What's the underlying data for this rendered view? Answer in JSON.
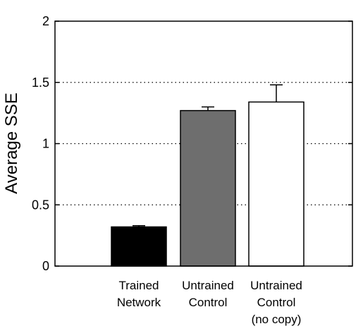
{
  "chart_data": {
    "type": "bar",
    "title": "",
    "xlabel": "",
    "ylabel": "Average SSE",
    "ylim": [
      0,
      2
    ],
    "yticks": [
      0,
      0.5,
      1,
      1.5,
      2
    ],
    "ytick_labels": [
      "0",
      "0.5",
      "1",
      "1.5",
      "2"
    ],
    "grid": "dotted horizontal lines at 0.5, 1, 1.5",
    "categories": [
      {
        "lines": [
          "Trained",
          "Network"
        ]
      },
      {
        "lines": [
          "Untrained",
          "Control"
        ]
      },
      {
        "lines": [
          "Untrained",
          "Control",
          "(no copy)"
        ]
      }
    ],
    "values": [
      0.32,
      1.27,
      1.34
    ],
    "errors": [
      0.01,
      0.03,
      0.14
    ],
    "bar_colors": [
      "#000000",
      "#6e6e6e",
      "#ffffff"
    ]
  }
}
